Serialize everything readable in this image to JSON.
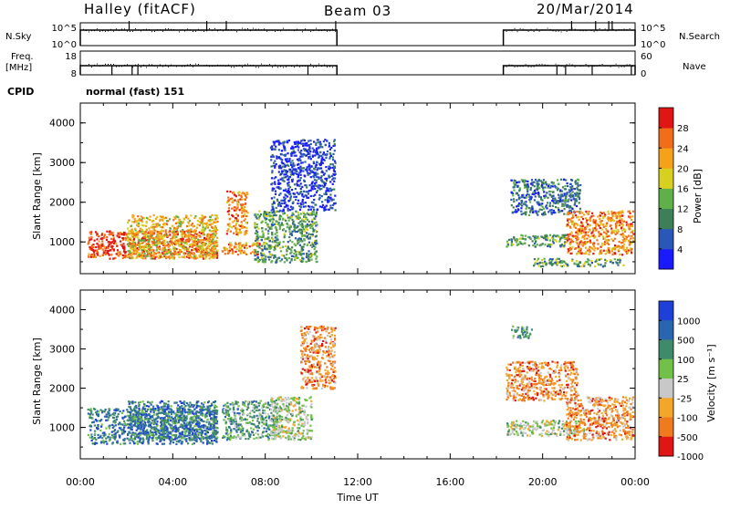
{
  "header": {
    "station": "Halley (fitACF)",
    "beam": "Beam 03",
    "date": "20/Mar/2014"
  },
  "left_labels": {
    "nsky": "N.Sky",
    "freq_line1": "Freq.",
    "freq_line2": "[MHz]",
    "cpid": "CPID"
  },
  "right_labels": {
    "nsearch": "N.Search",
    "nave": "Nave"
  },
  "cpid_text": "normal (fast) 151",
  "colors": {
    "power": [
      "#1a1aff",
      "#2a58b8",
      "#3e7f5a",
      "#5fb04a",
      "#d8d020",
      "#f5a21a",
      "#f26d1a",
      "#e01515"
    ],
    "velocity": [
      "#1e3fd8",
      "#2a66b0",
      "#3f8a6a",
      "#72c04a",
      "#c8c8c8",
      "#f2a62a",
      "#f07a1e",
      "#e01515"
    ]
  },
  "chart_data": [
    {
      "type": "line",
      "name": "nsky-nsearch",
      "y_left_ticks": [
        "10^5",
        "10^0"
      ],
      "y_right_ticks": [
        "10^5",
        "10^0"
      ],
      "segments": [
        [
          0.0,
          11.1
        ],
        [
          18.3,
          24.0
        ]
      ]
    },
    {
      "type": "line",
      "name": "freq-nave",
      "y_left_ticks": [
        "18",
        "8"
      ],
      "y_right_ticks": [
        "60",
        "0"
      ],
      "segments": [
        [
          0.0,
          11.1
        ],
        [
          18.3,
          24.0
        ]
      ]
    },
    {
      "type": "heatmap",
      "name": "power",
      "ylabel": "Slant Range [km]",
      "ylim": [
        200,
        4500
      ],
      "xlim": [
        0,
        24
      ],
      "yticks": [
        "1000",
        "2000",
        "3000",
        "4000"
      ],
      "colorbar_label": "Power [dB]",
      "colorbar_ticks": [
        "4",
        "8",
        "12",
        "16",
        "20",
        "24",
        "28"
      ],
      "echo_regions": [
        {
          "t0": 0.3,
          "t1": 5.9,
          "r0": 600,
          "r1": 1300,
          "level": 7
        },
        {
          "t0": 2.0,
          "t1": 5.9,
          "r0": 600,
          "r1": 1700,
          "level": 5
        },
        {
          "t0": 6.1,
          "t1": 7.8,
          "r0": 700,
          "r1": 1000,
          "level": 6
        },
        {
          "t0": 6.3,
          "t1": 7.2,
          "r0": 1200,
          "r1": 2300,
          "level": 6
        },
        {
          "t0": 7.5,
          "t1": 10.2,
          "r0": 500,
          "r1": 1800,
          "level": 3
        },
        {
          "t0": 8.2,
          "t1": 11.0,
          "r0": 1800,
          "r1": 3600,
          "level": 1
        },
        {
          "t0": 18.4,
          "t1": 21.0,
          "r0": 900,
          "r1": 1200,
          "level": 3
        },
        {
          "t0": 18.6,
          "t1": 21.6,
          "r0": 1700,
          "r1": 2600,
          "level": 2
        },
        {
          "t0": 21.0,
          "t1": 23.9,
          "r0": 700,
          "r1": 1800,
          "level": 6
        },
        {
          "t0": 19.5,
          "t1": 23.5,
          "r0": 400,
          "r1": 600,
          "level": 3
        }
      ]
    },
    {
      "type": "heatmap",
      "name": "velocity",
      "ylabel": "Slant Range [km]",
      "ylim": [
        200,
        4500
      ],
      "xlim": [
        0,
        24
      ],
      "yticks": [
        "1000",
        "2000",
        "3000",
        "4000"
      ],
      "xticks": [
        "00:00",
        "04:00",
        "08:00",
        "12:00",
        "16:00",
        "20:00",
        "00:00"
      ],
      "xlabel": "Time UT",
      "colorbar_label": "Velocity [m s⁻¹]",
      "colorbar_ticks": [
        "1000",
        "500",
        "100",
        "25",
        "-25",
        "-100",
        "-500",
        "-1000"
      ],
      "echo_regions": [
        {
          "t0": 0.3,
          "t1": 5.9,
          "r0": 600,
          "r1": 1500,
          "level": 2
        },
        {
          "t0": 2.0,
          "t1": 5.9,
          "r0": 700,
          "r1": 1700,
          "level": 2
        },
        {
          "t0": 6.1,
          "t1": 8.5,
          "r0": 700,
          "r1": 1700,
          "level": 3
        },
        {
          "t0": 8.2,
          "t1": 10.0,
          "r0": 700,
          "r1": 1800,
          "level": 4
        },
        {
          "t0": 9.5,
          "t1": 11.0,
          "r0": 2000,
          "r1": 3600,
          "level": 6
        },
        {
          "t0": 18.4,
          "t1": 21.8,
          "r0": 800,
          "r1": 1200,
          "level": 4
        },
        {
          "t0": 18.4,
          "t1": 21.5,
          "r0": 1700,
          "r1": 2700,
          "level": 6
        },
        {
          "t0": 21.0,
          "t1": 23.9,
          "r0": 700,
          "r1": 1800,
          "level": 6
        },
        {
          "t0": 18.6,
          "t1": 19.6,
          "r0": 3300,
          "r1": 3600,
          "level": 3
        }
      ]
    }
  ]
}
